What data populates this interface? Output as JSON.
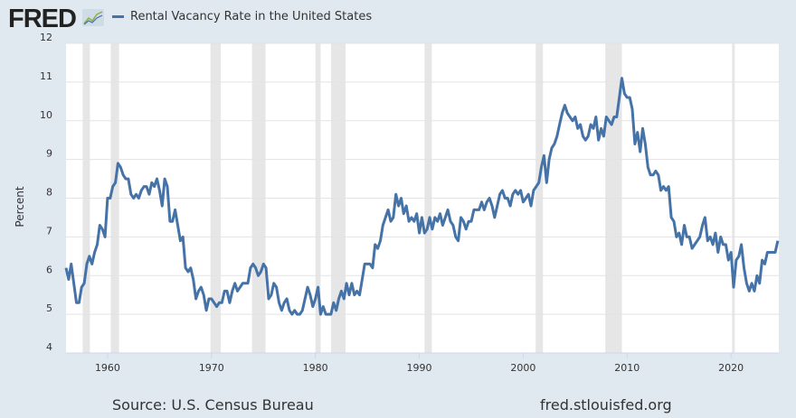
{
  "header": {
    "logo": "FRED",
    "logo_icon": "chart-trend-icon"
  },
  "chart_data": {
    "type": "line",
    "title": "Rental Vacancy Rate in the United States",
    "xlabel": "",
    "ylabel": "Percent",
    "ylim": [
      4,
      12
    ],
    "xlim": [
      1956,
      2024.6
    ],
    "yticks": [
      "4",
      "5",
      "6",
      "7",
      "8",
      "9",
      "10",
      "11",
      "12"
    ],
    "xticks": [
      "1960",
      "1970",
      "1980",
      "1990",
      "2000",
      "2010",
      "2020"
    ],
    "grid": true,
    "legend": "top-left",
    "recessions": [
      [
        1957.6,
        1958.3
      ],
      [
        1960.3,
        1961.1
      ],
      [
        1969.9,
        1970.9
      ],
      [
        1973.9,
        1975.2
      ],
      [
        1980.0,
        1980.5
      ],
      [
        1981.5,
        1982.9
      ],
      [
        1990.5,
        1991.2
      ],
      [
        2001.2,
        2001.9
      ],
      [
        2007.9,
        2009.5
      ],
      [
        2020.1,
        2020.3
      ]
    ],
    "series": [
      {
        "name": "Rental Vacancy Rate in the United States",
        "color": "#4572a7",
        "start": 1956,
        "frequency": "quarterly",
        "values": [
          6.2,
          5.9,
          6.3,
          5.8,
          5.3,
          5.3,
          5.7,
          5.8,
          6.3,
          6.5,
          6.3,
          6.6,
          6.8,
          7.3,
          7.2,
          7.0,
          8.0,
          8.0,
          8.3,
          8.4,
          8.9,
          8.8,
          8.6,
          8.5,
          8.5,
          8.1,
          8.0,
          8.1,
          8.0,
          8.2,
          8.3,
          8.3,
          8.1,
          8.4,
          8.3,
          8.5,
          8.2,
          7.8,
          8.5,
          8.3,
          7.4,
          7.4,
          7.7,
          7.3,
          6.9,
          7.0,
          6.2,
          6.1,
          6.2,
          5.9,
          5.4,
          5.6,
          5.7,
          5.5,
          5.1,
          5.4,
          5.4,
          5.3,
          5.2,
          5.3,
          5.3,
          5.6,
          5.6,
          5.3,
          5.6,
          5.8,
          5.6,
          5.7,
          5.8,
          5.8,
          5.8,
          6.2,
          6.3,
          6.2,
          6.0,
          6.1,
          6.3,
          6.2,
          5.4,
          5.5,
          5.8,
          5.7,
          5.3,
          5.1,
          5.3,
          5.4,
          5.1,
          5.0,
          5.1,
          5.0,
          5.0,
          5.1,
          5.4,
          5.7,
          5.5,
          5.2,
          5.4,
          5.7,
          5.0,
          5.2,
          5.0,
          5.0,
          5.0,
          5.3,
          5.1,
          5.4,
          5.6,
          5.4,
          5.8,
          5.5,
          5.8,
          5.5,
          5.6,
          5.5,
          5.9,
          6.3,
          6.3,
          6.3,
          6.2,
          6.8,
          6.7,
          6.9,
          7.3,
          7.5,
          7.7,
          7.4,
          7.5,
          8.1,
          7.8,
          8.0,
          7.6,
          7.8,
          7.4,
          7.5,
          7.4,
          7.6,
          7.1,
          7.5,
          7.1,
          7.2,
          7.5,
          7.2,
          7.5,
          7.4,
          7.6,
          7.3,
          7.5,
          7.7,
          7.4,
          7.3,
          7.0,
          6.9,
          7.5,
          7.4,
          7.2,
          7.4,
          7.4,
          7.7,
          7.7,
          7.7,
          7.9,
          7.7,
          7.9,
          8.0,
          7.8,
          7.5,
          7.8,
          8.1,
          8.2,
          8.0,
          8.0,
          7.8,
          8.1,
          8.2,
          8.1,
          8.2,
          7.9,
          8.0,
          8.1,
          7.8,
          8.2,
          8.3,
          8.4,
          8.8,
          9.1,
          8.4,
          9.0,
          9.3,
          9.4,
          9.6,
          9.9,
          10.2,
          10.4,
          10.2,
          10.1,
          10.0,
          10.1,
          9.8,
          9.9,
          9.6,
          9.5,
          9.6,
          9.9,
          9.8,
          10.1,
          9.5,
          9.8,
          9.6,
          10.1,
          10.0,
          9.9,
          10.1,
          10.1,
          10.6,
          11.1,
          10.7,
          10.6,
          10.6,
          10.3,
          9.4,
          9.7,
          9.2,
          9.8,
          9.4,
          8.8,
          8.6,
          8.6,
          8.7,
          8.6,
          8.2,
          8.3,
          8.2,
          8.3,
          7.5,
          7.4,
          7.0,
          7.1,
          6.8,
          7.3,
          7.0,
          7.0,
          6.7,
          6.8,
          6.9,
          7.0,
          7.3,
          7.5,
          6.9,
          7.0,
          6.8,
          7.1,
          6.6,
          7.0,
          6.8,
          6.8,
          6.4,
          6.6,
          5.7,
          6.4,
          6.5,
          6.8,
          6.2,
          5.8,
          5.6,
          5.8,
          5.6,
          6.0,
          5.8,
          6.4,
          6.3,
          6.6,
          6.6,
          6.6,
          6.6,
          6.9
        ]
      }
    ]
  },
  "footer": {
    "source": "Source: U.S. Census Bureau",
    "site": "fred.stlouisfed.org"
  }
}
